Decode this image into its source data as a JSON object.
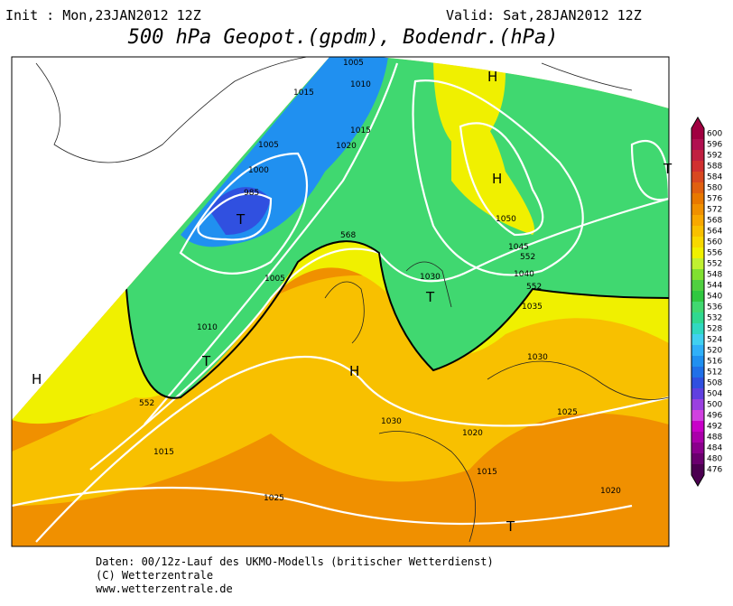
{
  "header": {
    "init": "Init : Mon,23JAN2012 12Z",
    "valid": "Valid: Sat,28JAN2012 12Z",
    "title": "500 hPa Geopot.(gpdm), Bodendr.(hPa)"
  },
  "map_labels": [
    "1005",
    "1015",
    "1010",
    "1015",
    "1020",
    "1005",
    "1000",
    "985",
    "T",
    "H",
    "H",
    "T",
    "1050",
    "1045",
    "552",
    "1040",
    "552",
    "1030",
    "T",
    "1035",
    "1005",
    "1010",
    "T",
    "H",
    "552",
    "H",
    "1030",
    "1030",
    "1025",
    "1020",
    "1015",
    "1015",
    "1020",
    "1025",
    "T",
    "568"
  ],
  "colorbar": {
    "ticks": [
      600,
      596,
      592,
      588,
      584,
      580,
      576,
      572,
      568,
      564,
      560,
      556,
      552,
      548,
      544,
      540,
      536,
      532,
      528,
      524,
      520,
      516,
      512,
      508,
      504,
      500,
      496,
      492,
      488,
      484,
      480,
      476
    ],
    "colors": [
      "#a00040",
      "#b01050",
      "#c02040",
      "#d03030",
      "#d84820",
      "#e06010",
      "#e87800",
      "#f09000",
      "#f8a800",
      "#f8c000",
      "#f8d800",
      "#f0f000",
      "#c0f030",
      "#80e030",
      "#50d040",
      "#30c840",
      "#40d870",
      "#30d890",
      "#30d8c0",
      "#40d0f0",
      "#30b0f8",
      "#2090f0",
      "#2070e8",
      "#3050e0",
      "#6040e0",
      "#9a40e0",
      "#d040e0",
      "#c800c8",
      "#aa00aa",
      "#8a008c",
      "#6a006e",
      "#4b0050"
    ]
  },
  "footer": {
    "line1": "Daten: 00/12z-Lauf des UKMO-Modells (britischer Wetterdienst)",
    "line2": "(C) Wetterzentrale",
    "line3": "www.wetterzentrale.de"
  }
}
